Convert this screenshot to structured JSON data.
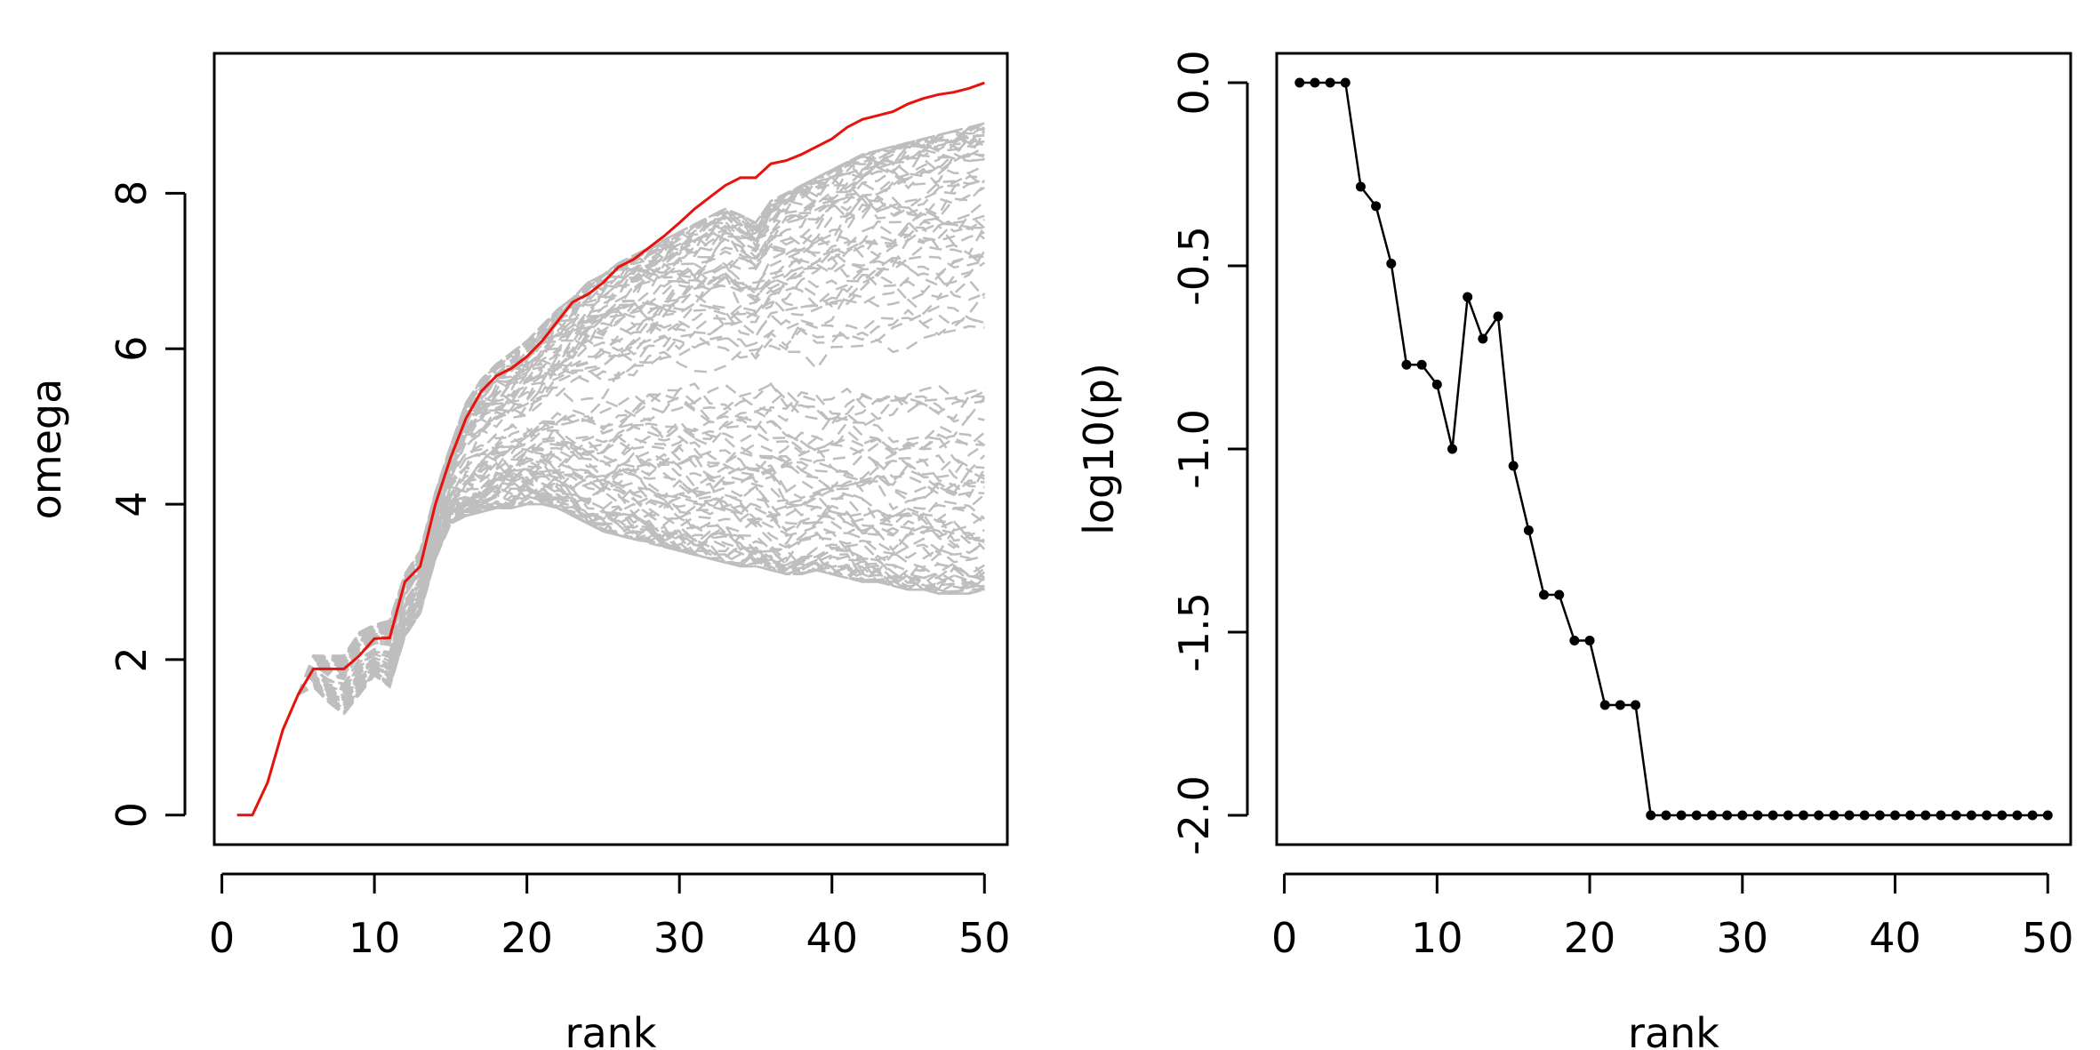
{
  "chart_data": [
    {
      "type": "line",
      "xlabel": "rank",
      "ylabel": "omega",
      "xlim": [
        -0.5,
        51.5
      ],
      "ylim": [
        -0.38,
        9.8
      ],
      "x_ticks": [
        0,
        10,
        20,
        30,
        40,
        50
      ],
      "y_ticks": [
        0,
        2,
        4,
        6,
        8
      ],
      "x_tick_labels": [
        "0",
        "10",
        "20",
        "30",
        "40",
        "50"
      ],
      "y_tick_labels": [
        "0",
        "2",
        "4",
        "6",
        "8"
      ],
      "grid": false,
      "legend": "none",
      "observed": {
        "color": "#e8120c",
        "style": "solid",
        "x": [
          1,
          2,
          3,
          4,
          5,
          6,
          7,
          8,
          9,
          10,
          11,
          12,
          13,
          14,
          15,
          16,
          17,
          18,
          19,
          20,
          21,
          22,
          23,
          24,
          25,
          26,
          27,
          28,
          29,
          30,
          31,
          32,
          33,
          34,
          35,
          36,
          37,
          38,
          39,
          40,
          41,
          42,
          43,
          44,
          45,
          46,
          47,
          48,
          49,
          50
        ],
        "y": [
          0,
          0,
          0.42,
          1.1,
          1.55,
          1.88,
          1.88,
          1.88,
          2.05,
          2.27,
          2.28,
          3.0,
          3.2,
          4.0,
          4.6,
          5.1,
          5.45,
          5.65,
          5.75,
          5.9,
          6.1,
          6.35,
          6.6,
          6.7,
          6.85,
          7.05,
          7.15,
          7.3,
          7.45,
          7.62,
          7.8,
          7.95,
          8.1,
          8.2,
          8.2,
          8.38,
          8.42,
          8.5,
          8.6,
          8.7,
          8.85,
          8.95,
          9.0,
          9.05,
          9.15,
          9.22,
          9.27,
          9.3,
          9.35,
          9.42
        ]
      },
      "null_envelope": {
        "color": "#bebebe",
        "style": "dashed",
        "count": 100,
        "x": [
          1,
          2,
          3,
          4,
          5,
          6,
          7,
          8,
          9,
          10,
          11,
          12,
          13,
          14,
          15,
          16,
          17,
          18,
          19,
          20,
          21,
          22,
          23,
          24,
          25,
          26,
          27,
          28,
          29,
          30,
          31,
          32,
          33,
          34,
          35,
          36,
          37,
          38,
          39,
          40,
          41,
          42,
          43,
          44,
          45,
          46,
          47,
          48,
          49,
          50
        ],
        "lower": [
          0,
          0,
          0.42,
          1.1,
          1.55,
          1.65,
          1.45,
          1.3,
          1.55,
          1.8,
          1.65,
          2.3,
          2.6,
          3.3,
          3.75,
          3.85,
          3.9,
          3.95,
          3.95,
          4.0,
          4.0,
          3.95,
          3.85,
          3.75,
          3.65,
          3.6,
          3.55,
          3.5,
          3.45,
          3.4,
          3.35,
          3.3,
          3.25,
          3.2,
          3.2,
          3.15,
          3.1,
          3.1,
          3.15,
          3.1,
          3.05,
          3.0,
          3.0,
          2.95,
          2.9,
          2.9,
          2.85,
          2.85,
          2.85,
          2.9
        ],
        "upper": [
          0,
          0,
          0.42,
          1.1,
          1.55,
          2.05,
          2.05,
          2.05,
          2.35,
          2.45,
          2.5,
          3.1,
          3.4,
          4.15,
          4.75,
          5.3,
          5.6,
          5.8,
          5.95,
          6.1,
          6.3,
          6.5,
          6.65,
          6.85,
          6.95,
          7.1,
          7.2,
          7.3,
          7.4,
          7.5,
          7.6,
          7.7,
          7.8,
          7.72,
          7.62,
          7.9,
          8.0,
          8.1,
          8.2,
          8.3,
          8.4,
          8.5,
          8.55,
          8.6,
          8.65,
          8.7,
          8.75,
          8.8,
          8.85,
          8.9
        ],
        "central": [
          0,
          0,
          0.42,
          1.1,
          1.55,
          1.85,
          1.7,
          1.65,
          1.95,
          2.1,
          2.05,
          2.7,
          3.0,
          3.7,
          4.2,
          4.45,
          4.6,
          4.7,
          4.75,
          4.8,
          4.85,
          4.9,
          4.95,
          4.95,
          5.0,
          5.0,
          5.05,
          5.05,
          5.1,
          5.15,
          5.15,
          5.1,
          5.1,
          5.05,
          5.05,
          5.1,
          5.05,
          5.05,
          5.0,
          5.0,
          5.0,
          5.0,
          5.0,
          5.0,
          5.05,
          5.05,
          5.05,
          5.0,
          5.0,
          5.05
        ]
      }
    },
    {
      "type": "line",
      "xlabel": "rank",
      "ylabel": "log10(p)",
      "xlim": [
        -0.5,
        51.5
      ],
      "ylim": [
        -2.08,
        0.08
      ],
      "x_ticks": [
        0,
        10,
        20,
        30,
        40,
        50
      ],
      "y_ticks": [
        0,
        -0.5,
        -1,
        -1.5,
        -2
      ],
      "x_tick_labels": [
        "0",
        "10",
        "20",
        "30",
        "40",
        "50"
      ],
      "y_tick_labels": [
        "0.0",
        "-0.5",
        "-1.0",
        "-1.5",
        "-2.0"
      ],
      "grid": false,
      "legend": "none",
      "series": [
        {
          "color": "#000000",
          "marker": "point",
          "x": [
            1,
            2,
            3,
            4,
            5,
            6,
            7,
            8,
            9,
            10,
            11,
            12,
            13,
            14,
            15,
            16,
            17,
            18,
            19,
            20,
            21,
            22,
            23,
            24,
            25,
            26,
            27,
            28,
            29,
            30,
            31,
            32,
            33,
            34,
            35,
            36,
            37,
            38,
            39,
            40,
            41,
            42,
            43,
            44,
            45,
            46,
            47,
            48,
            49,
            50
          ],
          "y": [
            0,
            0,
            0,
            0,
            -0.284,
            -0.337,
            -0.494,
            -0.77,
            -0.77,
            -0.824,
            -1.0,
            -0.585,
            -0.699,
            -0.638,
            -1.046,
            -1.222,
            -1.398,
            -1.398,
            -1.523,
            -1.523,
            -1.699,
            -1.699,
            -1.699,
            -2,
            -2,
            -2,
            -2,
            -2,
            -2,
            -2,
            -2,
            -2,
            -2,
            -2,
            -2,
            -2,
            -2,
            -2,
            -2,
            -2,
            -2,
            -2,
            -2,
            -2,
            -2,
            -2,
            -2,
            -2,
            -2,
            -2
          ]
        }
      ]
    }
  ]
}
